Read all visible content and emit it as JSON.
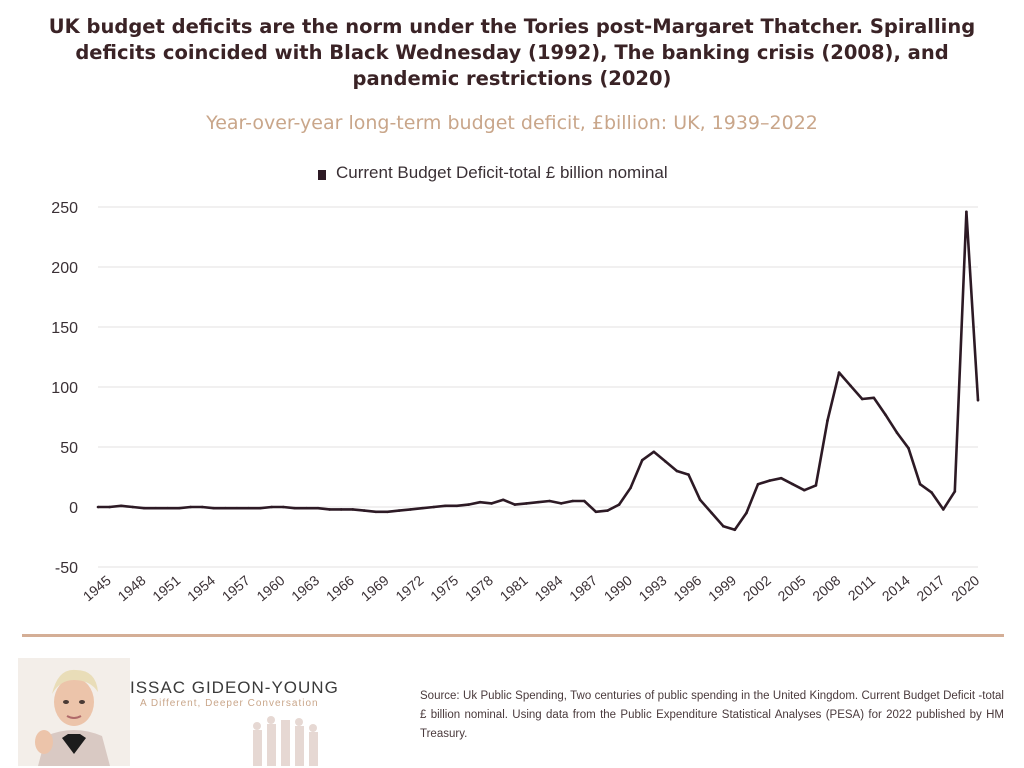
{
  "title": "UK budget deficits are the norm under the Tories post-Margaret Thatcher. Spiralling deficits coincided with Black Wednesday (1992), The banking crisis (2008), and pandemic restrictions (2020)",
  "subtitle": "Year-over-year long-term budget deficit, £billion: UK, 1939–2022",
  "chart_data": {
    "type": "line",
    "legend": "Current Budget Deficit-total £ billion nominal",
    "x": [
      1945,
      1946,
      1947,
      1948,
      1949,
      1950,
      1951,
      1952,
      1953,
      1954,
      1955,
      1956,
      1957,
      1958,
      1959,
      1960,
      1961,
      1962,
      1963,
      1964,
      1965,
      1966,
      1967,
      1968,
      1969,
      1970,
      1971,
      1972,
      1973,
      1974,
      1975,
      1976,
      1977,
      1978,
      1979,
      1980,
      1981,
      1982,
      1983,
      1984,
      1985,
      1986,
      1987,
      1988,
      1989,
      1990,
      1991,
      1992,
      1993,
      1994,
      1995,
      1996,
      1997,
      1998,
      1999,
      2000,
      2001,
      2002,
      2003,
      2004,
      2005,
      2006,
      2007,
      2008,
      2009,
      2010,
      2011,
      2012,
      2013,
      2014,
      2015,
      2016,
      2017,
      2018,
      2019,
      2020,
      2021
    ],
    "values": [
      0,
      0,
      1,
      0,
      -1,
      -1,
      -1,
      -1,
      0,
      0,
      -1,
      -1,
      -1,
      -1,
      -1,
      0,
      0,
      -1,
      -1,
      -1,
      -2,
      -2,
      -2,
      -3,
      -4,
      -4,
      -3,
      -2,
      -1,
      0,
      1,
      1,
      2,
      4,
      3,
      6,
      2,
      3,
      4,
      5,
      3,
      5,
      5,
      -4,
      -3,
      2,
      16,
      39,
      46,
      38,
      30,
      27,
      6,
      -5,
      -16,
      -19,
      -5,
      19,
      22,
      24,
      19,
      14,
      18,
      72,
      112,
      101,
      90,
      91,
      77,
      62,
      49,
      19,
      12,
      -2,
      13,
      246,
      89
    ],
    "x_ticks": [
      "1945",
      "1948",
      "1951",
      "1954",
      "1957",
      "1960",
      "1963",
      "1966",
      "1969",
      "1972",
      "1975",
      "1978",
      "1981",
      "1984",
      "1987",
      "1990",
      "1993",
      "1996",
      "1999",
      "2002",
      "2005",
      "2008",
      "2011",
      "2014",
      "2017",
      "2020"
    ],
    "y_ticks": [
      "250",
      "200",
      "150",
      "100",
      "50",
      "0",
      "-50"
    ],
    "ylim": [
      -50,
      250
    ],
    "color": "#2d1a25",
    "grid": true
  },
  "brand": {
    "name": "ISSAC GIDEON-YOUNG",
    "tagline": "A Different, Deeper Conversation"
  },
  "source": "Source: Uk Public Spending, Two centuries of public spending in the United Kingdom. Current Budget Deficit -total £ billion nominal. Using data from the Public Expenditure Statistical Analyses (PESA) for 2022 published by HM Treasury."
}
